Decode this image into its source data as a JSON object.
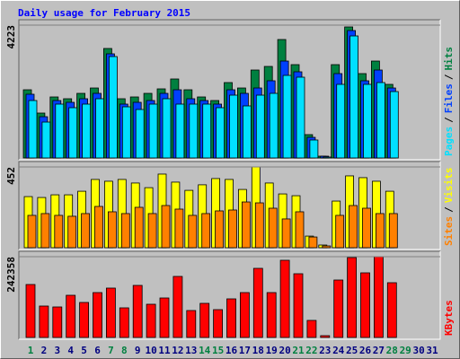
{
  "chart_data": {
    "type": "bar",
    "title": "Daily usage for February 2015",
    "title_color": "#0000ff",
    "categories": [
      "1",
      "2",
      "3",
      "4",
      "5",
      "6",
      "7",
      "8",
      "9",
      "10",
      "11",
      "12",
      "13",
      "14",
      "15",
      "16",
      "17",
      "18",
      "19",
      "20",
      "21",
      "22",
      "23",
      "24",
      "25",
      "26",
      "27",
      "28",
      "29",
      "30",
      "31"
    ],
    "category_colors": [
      "#008040",
      "#000080",
      "#000080",
      "#000080",
      "#000080",
      "#000080",
      "#008040",
      "#008040",
      "#000080",
      "#000080",
      "#000080",
      "#000080",
      "#000080",
      "#008040",
      "#008040",
      "#000080",
      "#000080",
      "#000080",
      "#000080",
      "#000080",
      "#008040",
      "#008040",
      "#000080",
      "#000080",
      "#000080",
      "#000080",
      "#000080",
      "#008040",
      "#008040",
      "#000080",
      "#000080"
    ],
    "legend_separator": "/",
    "panels": [
      {
        "ylim": [
          0,
          4223
        ],
        "yticks": [
          4223
        ],
        "series": [
          {
            "name": "Hits",
            "color": "#008040",
            "values": [
              2168,
              1427,
              1940,
              1883,
              2054,
              2225,
              3481,
              1883,
              1940,
              2054,
              2197,
              2511,
              2168,
              1940,
              1826,
              2397,
              2225,
              2796,
              2910,
              3766,
              2967,
              742,
              57,
              2967,
              4166,
              2682,
              3081,
              2340,
              null,
              null,
              null
            ]
          },
          {
            "name": "Files",
            "color": "#0040ff",
            "values": [
              2026,
              1312,
              1826,
              1769,
              1883,
              2054,
              3310,
              1712,
              1769,
              1826,
              2054,
              2168,
              1883,
              1826,
              1712,
              2168,
              2054,
              2225,
              2454,
              3081,
              2739,
              656,
              57,
              2682,
              4051,
              2454,
              2796,
              2225,
              null,
              null,
              null
            ]
          },
          {
            "name": "Pages",
            "color": "#00e0ff",
            "values": [
              1826,
              1141,
              1712,
              1598,
              1712,
              1883,
              3224,
              1626,
              1541,
              1712,
              1883,
              1712,
              1712,
              1712,
              1598,
              1997,
              1655,
              1997,
              2054,
              2625,
              2568,
              571,
              29,
              2340,
              3880,
              2340,
              2397,
              2111,
              null,
              null,
              null
            ]
          }
        ]
      },
      {
        "ylim": [
          0,
          452
        ],
        "yticks": [
          452
        ],
        "series": [
          {
            "name": "Visits",
            "color": "#ffff00",
            "values": [
              286,
              281,
              296,
              296,
              316,
              382,
              372,
              382,
              362,
              336,
              412,
              367,
              321,
              352,
              387,
              382,
              326,
              452,
              362,
              301,
              291,
              65,
              15,
              261,
              402,
              392,
              372,
              316,
              null,
              null,
              null
            ]
          },
          {
            "name": "Sites",
            "color": "#ff8000",
            "values": [
              181,
              191,
              181,
              176,
              191,
              231,
              201,
              191,
              226,
              191,
              236,
              216,
              181,
              191,
              206,
              211,
              256,
              251,
              221,
              161,
              201,
              60,
              10,
              181,
              236,
              221,
              191,
              191,
              null,
              null,
              null
            ]
          }
        ]
      },
      {
        "ylim": [
          0,
          242358
        ],
        "yticks": [
          242358
        ],
        "series": [
          {
            "name": "KBytes",
            "color": "#ff0000",
            "values": [
              158887,
              94255,
              91562,
              126571,
              105027,
              134650,
              148115,
              88869,
              156194,
              99641,
              118492,
              183124,
              80790,
              102334,
              83483,
              115799,
              134650,
              207361,
              134650,
              231598,
              191203,
              51167,
              5386,
              172352,
              239677,
              193896,
              242358,
              164273,
              null,
              null,
              null
            ]
          }
        ]
      }
    ]
  }
}
